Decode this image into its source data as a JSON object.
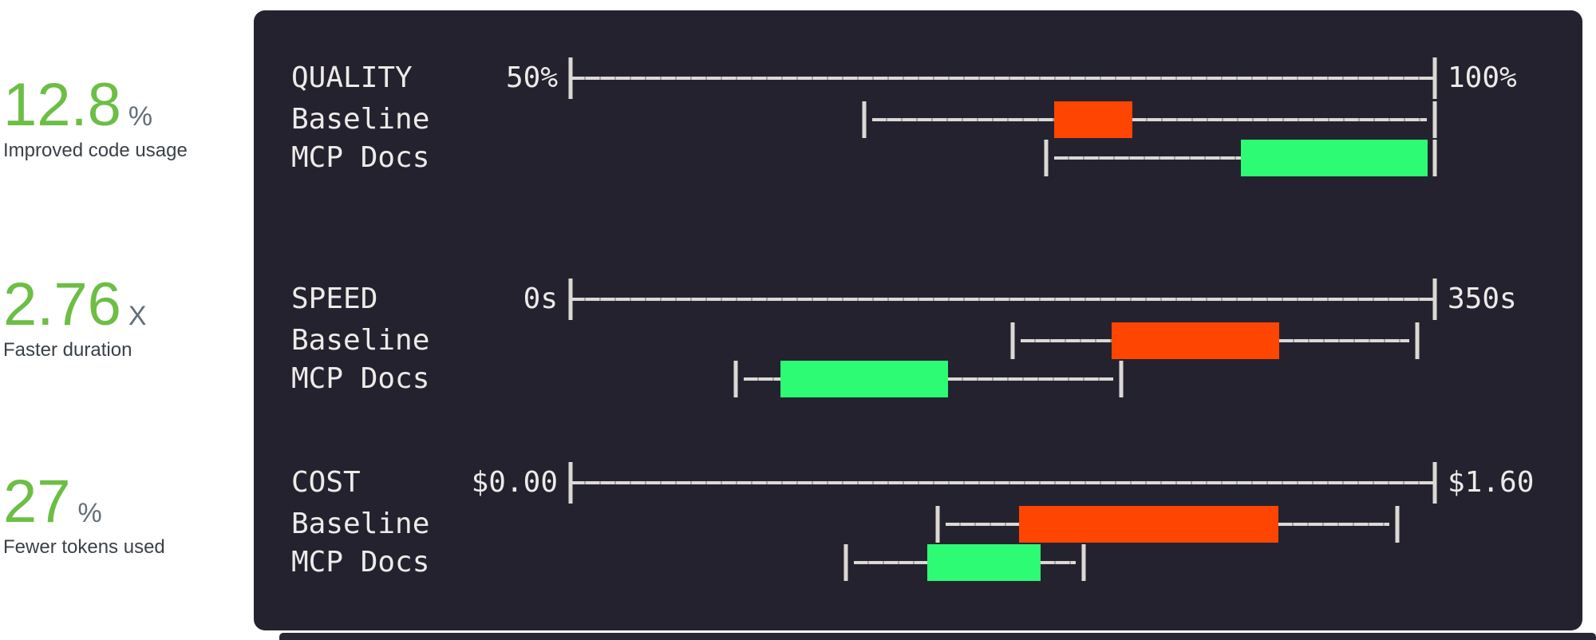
{
  "colors": {
    "metric_green": "#6CBE45",
    "metric_unit_gray": "#646E79",
    "metric_label_dark": "#3A4147",
    "panel_bg": "#252230",
    "panel_text": "#EDEBE8",
    "axis_line": "#DCD8D4",
    "axis_line_dim": "#A5A29F",
    "baseline_red": "#FF4502",
    "mcp_green": "#2EFB74",
    "bottom_strip": "#2A2735"
  },
  "metrics": [
    {
      "value": "12.8",
      "unit": "%",
      "label": "Improved code usage"
    },
    {
      "value": "2.76",
      "unit": "X",
      "label": "Faster duration"
    },
    {
      "value": "27",
      "unit": "%",
      "label": "Fewer tokens used"
    }
  ],
  "chart_data": [
    {
      "type": "box",
      "title": "QUALITY",
      "axis": {
        "min": 50,
        "max": 100,
        "min_label": "50%",
        "max_label": "100%",
        "unit": "percent"
      },
      "rows": [
        {
          "name": "Baseline",
          "color": "#FF4502",
          "whisker_low": 67,
          "q1": 78,
          "q3": 82.5,
          "whisker_high": 100
        },
        {
          "name": "MCP Docs",
          "color": "#2EFB74",
          "whisker_low": 77.5,
          "q1": 88.8,
          "q3": 99.6,
          "whisker_high": 100
        }
      ]
    },
    {
      "type": "box",
      "title": "SPEED",
      "axis": {
        "min": 0,
        "max": 350,
        "min_label": "0s",
        "max_label": "350s",
        "unit": "seconds"
      },
      "rows": [
        {
          "name": "Baseline",
          "color": "#FF4502",
          "whisker_low": 179,
          "q1": 219,
          "q3": 287,
          "whisker_high": 343
        },
        {
          "name": "MCP Docs",
          "color": "#2EFB74",
          "whisker_low": 67,
          "q1": 85,
          "q3": 153,
          "whisker_high": 223
        }
      ]
    },
    {
      "type": "box",
      "title": "COST",
      "axis": {
        "min": 0,
        "max": 1.6,
        "min_label": "$0.00",
        "max_label": "$1.60",
        "unit": "dollars"
      },
      "rows": [
        {
          "name": "Baseline",
          "color": "#FF4502",
          "whisker_low": 0.68,
          "q1": 0.83,
          "q3": 1.31,
          "whisker_high": 1.53
        },
        {
          "name": "MCP Docs",
          "color": "#2EFB74",
          "whisker_low": 0.51,
          "q1": 0.66,
          "q3": 0.87,
          "whisker_high": 0.95
        }
      ]
    }
  ]
}
